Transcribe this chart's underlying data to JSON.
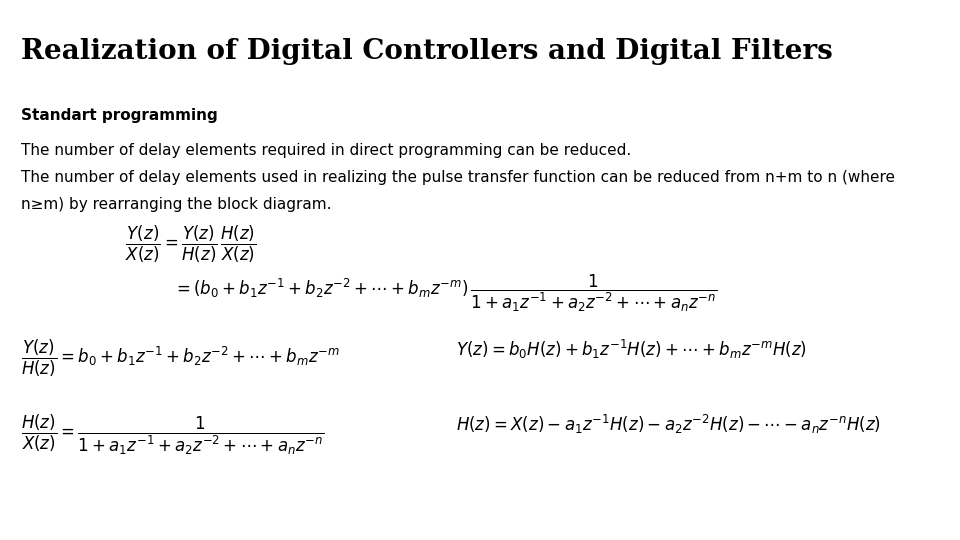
{
  "title": "Realization of Digital Controllers and Digital Filters",
  "subtitle": "Standart programming",
  "line1": "The number of delay elements required in direct programming can be reduced.",
  "line2": "The number of delay elements used in realizing the pulse transfer function can be reduced from n+m to n (where",
  "line3": "n≥m) by rearranging the block diagram.",
  "bg_color": "#ffffff",
  "title_fontsize": 20,
  "subtitle_fontsize": 11,
  "text_fontsize": 11,
  "math_fontsize": 12
}
